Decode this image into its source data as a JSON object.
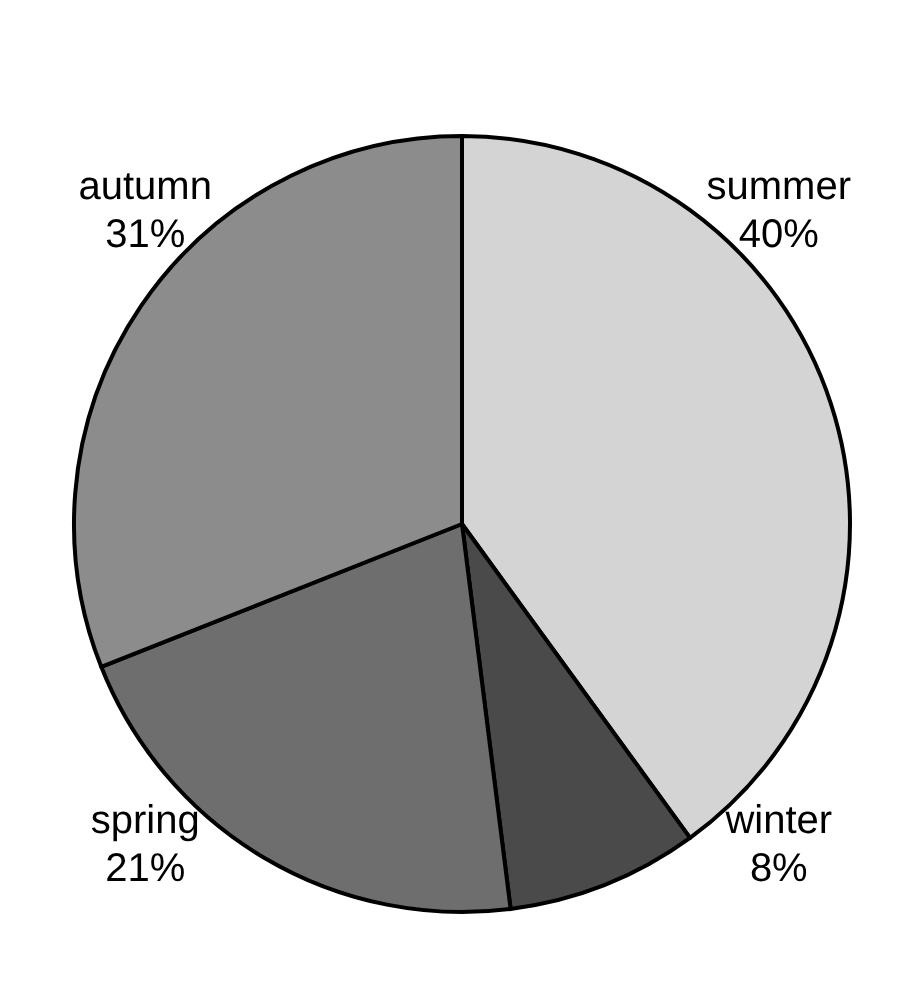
{
  "chart_data": {
    "type": "pie",
    "categories": [
      "summer",
      "winter",
      "spring",
      "autumn"
    ],
    "values": [
      40,
      8,
      21,
      31
    ],
    "colors": [
      "#d4d4d4",
      "#4a4a4a",
      "#6e6e6e",
      "#8c8c8c"
    ],
    "value_labels": [
      "40%",
      "8%",
      "21%",
      "31%"
    ]
  }
}
